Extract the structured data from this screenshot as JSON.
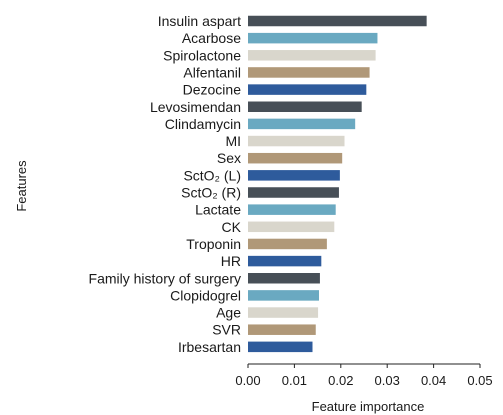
{
  "chart_data": {
    "type": "bar",
    "orientation": "horizontal",
    "xlabel": "Feature importance",
    "ylabel": "Features",
    "xlim": [
      0.0,
      0.05
    ],
    "xticks": [
      "0.00",
      "0.01",
      "0.02",
      "0.03",
      "0.04",
      "0.05"
    ],
    "grid": false,
    "categories": [
      "Insulin aspart",
      "Acarbose",
      "Spirolactone",
      "Alfentanil",
      "Dezocine",
      "Levosimendan",
      "Clindamycin",
      "MI",
      "Sex",
      "SctO₂ (L)",
      "SctO₂ (R)",
      "Lactate",
      "CK",
      "Troponin",
      "HR",
      "Family history of surgery",
      "Clopidogrel",
      "Age",
      "SVR",
      "Irbesartan"
    ],
    "values": [
      0.0385,
      0.0279,
      0.0275,
      0.0262,
      0.0255,
      0.0245,
      0.0231,
      0.0208,
      0.0203,
      0.0198,
      0.0196,
      0.0189,
      0.0186,
      0.017,
      0.0158,
      0.0155,
      0.0153,
      0.0151,
      0.0146,
      0.0139
    ],
    "palette": [
      "#474f57",
      "#6aa9c1",
      "#d9d6cc",
      "#b09878",
      "#2e5b9c"
    ]
  }
}
